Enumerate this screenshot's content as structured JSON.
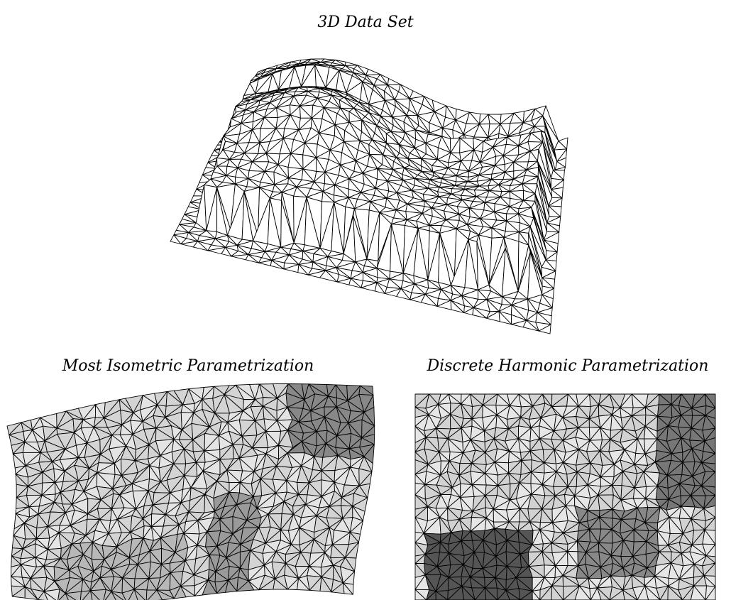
{
  "figure": {
    "top_title": "3D Data Set",
    "left_title": "Most Isometric Parametrization",
    "right_title": "Discrete Harmonic Parametrization"
  }
}
